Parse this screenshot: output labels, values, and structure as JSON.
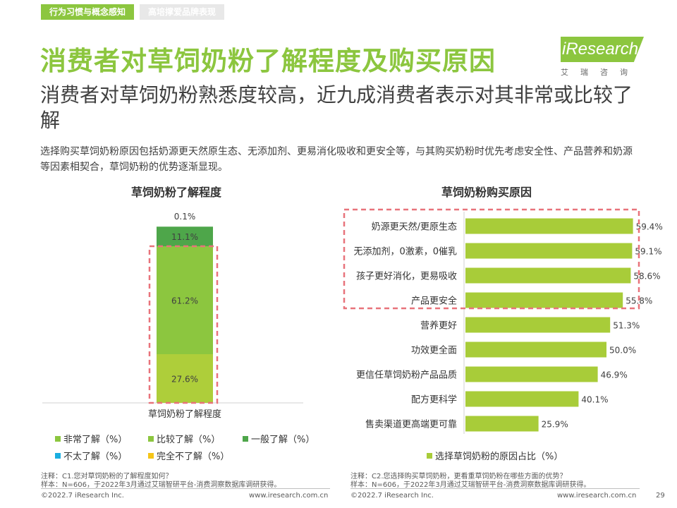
{
  "header": {
    "tabs": [
      "行为习惯与概念感知",
      "高培撑爱品牌表现"
    ],
    "title": "消费者对草饲奶粉了解程度及购买原因",
    "subtitle": "消费者对草饲奶粉熟悉度较高，近九成消费者表示对其非常或比较了解",
    "description": "选择购买草饲奶粉原因包括奶源更天然原生态、无添加剂、更易消化吸收和更安全等，与其购买奶粉时优先考虑安全性、产品营养和奶源等因素相契合，草饲奶粉的优势逐渐显现。"
  },
  "logo": {
    "text": "iResearch",
    "sub": "艾瑞咨询"
  },
  "colors": {
    "accent": "#8cc63f",
    "very": "#8cc63f",
    "fairly": "#8cc63f",
    "general": "#4ea64a",
    "little": "#1aaee0",
    "none": "#f5c518",
    "bar_right": "#a8cc39",
    "highlight": "#e8737b"
  },
  "chart_data": [
    {
      "type": "bar",
      "stacked": true,
      "title": "草饲奶粉了解程度",
      "categories": [
        "草饲奶粉了解程度"
      ],
      "xlabel": "草饲奶粉了解程度",
      "series": [
        {
          "name": "非常了解（%）",
          "values": [
            27.6
          ],
          "label": "27.6%"
        },
        {
          "name": "比较了解（%）",
          "values": [
            61.2
          ],
          "label": "61.2%"
        },
        {
          "name": "一般了解（%）",
          "values": [
            11.1
          ],
          "label": "11.1%"
        },
        {
          "name": "不太了解（%）",
          "values": [
            0.1
          ],
          "label": "0.1%"
        },
        {
          "name": "完全不了解（%）",
          "values": [
            0.0
          ],
          "label": ""
        }
      ],
      "ylim": [
        0,
        100
      ]
    },
    {
      "type": "bar",
      "orientation": "horizontal",
      "title": "草饲奶粉购买原因",
      "legend": "选择草饲奶粉的原因占比（%）",
      "categories": [
        "奶源更天然/更原生态",
        "无添加剂，0激素，0催乳",
        "孩子更好消化，更易吸收",
        "产品更安全",
        "营养更好",
        "功效更全面",
        "更信任草饲奶粉产品品质",
        "配方更科学",
        "售卖渠道更高端更可靠"
      ],
      "values": [
        59.4,
        59.1,
        58.6,
        55.8,
        51.3,
        50.0,
        46.9,
        40.1,
        25.9
      ],
      "labels": [
        "59.4%",
        "59.1%",
        "58.6%",
        "55.8%",
        "51.3%",
        "50.0%",
        "46.9%",
        "40.1%",
        "25.9%"
      ],
      "xlim": [
        0,
        70
      ]
    }
  ],
  "notes": {
    "left": [
      "注释：C1.您对草饲奶粉的了解程度如何？",
      "样本：N=606，于2022年3月通过艾瑞智研平台-消费洞察数据库调研获得。"
    ],
    "right": [
      "注释：C2.您选择购买草饲奶粉，更看重草饲奶粉在哪些方面的优势？",
      "样本：N=606，于2022年3月通过艾瑞智研平台-消费洞察数据库调研获得。"
    ]
  },
  "footer": {
    "copyright_left": "©2022.7 iResearch Inc.",
    "url_left": "www.iresearch.com.cn",
    "copyright_right": "©2022.7 iResearch Inc.",
    "url_right": "www.iresearch.com.cn",
    "page": "29"
  }
}
